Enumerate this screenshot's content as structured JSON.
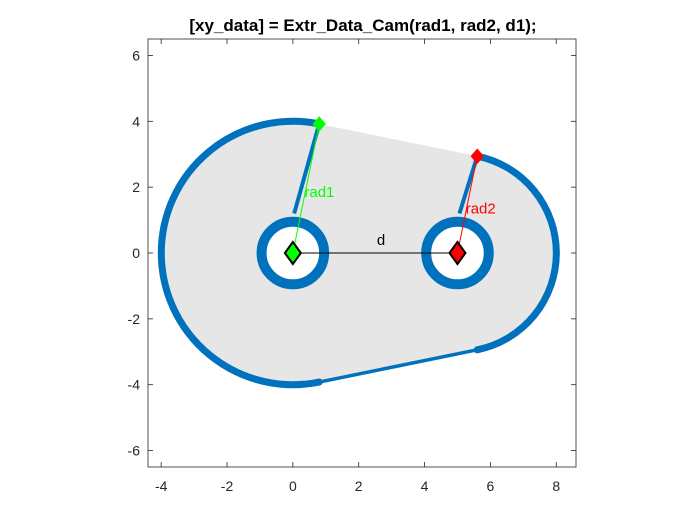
{
  "figure": {
    "title": "[xy_data] = Extr_Data_Cam(rad1, rad2, d1);"
  },
  "chart_data": {
    "type": "diagram",
    "xlim": [
      -4.4,
      8.6
    ],
    "ylim": [
      -6.5,
      6.5
    ],
    "x_ticks": [
      -4,
      -2,
      0,
      2,
      4,
      6,
      8
    ],
    "y_ticks": [
      -6,
      -4,
      -2,
      0,
      2,
      4,
      6
    ],
    "x_tick_labels": [
      "-4",
      "-2",
      "0",
      "2",
      "4",
      "6",
      "8"
    ],
    "y_tick_labels": [
      "6",
      "4",
      "2",
      "0",
      "-2",
      "-4",
      "-6"
    ],
    "grid": false,
    "colors": {
      "outline": "#0072BD",
      "fill": "#E6E6E6",
      "rad1": "#00FF00",
      "rad2": "#FF0000",
      "d": "#000000"
    },
    "circle1": {
      "center": [
        0,
        0
      ],
      "radius": 4.0
    },
    "circle2": {
      "center": [
        5,
        0
      ],
      "radius": 3.0
    },
    "hub1": {
      "center": [
        0,
        0
      ],
      "radius": 0.95
    },
    "hub2": {
      "center": [
        5,
        0
      ],
      "radius": 0.95
    },
    "upper_tangent": {
      "from": [
        0.8,
        3.92
      ],
      "to": [
        5.6,
        2.94
      ]
    },
    "lower_tangent": {
      "from": [
        0.8,
        -3.92
      ],
      "to": [
        5.6,
        -2.94
      ]
    },
    "markers": [
      {
        "name": "center1",
        "point": [
          0,
          0
        ],
        "color": "#00FF00"
      },
      {
        "name": "center2",
        "point": [
          5,
          0
        ],
        "color": "#FF0000"
      },
      {
        "name": "tangent-point-1",
        "point": [
          0.8,
          3.92
        ],
        "color": "#00FF00"
      },
      {
        "name": "tangent-point-2",
        "point": [
          5.6,
          2.94
        ],
        "color": "#FF0000"
      }
    ],
    "annotations": {
      "rad1": {
        "text": "rad1",
        "at": [
          0.35,
          1.7
        ],
        "color": "#00FF00"
      },
      "rad2": {
        "text": "rad2",
        "at": [
          5.25,
          1.2
        ],
        "color": "#FF0000"
      },
      "d": {
        "text": "d",
        "at": [
          2.55,
          0.25
        ],
        "color": "#000000"
      }
    }
  }
}
